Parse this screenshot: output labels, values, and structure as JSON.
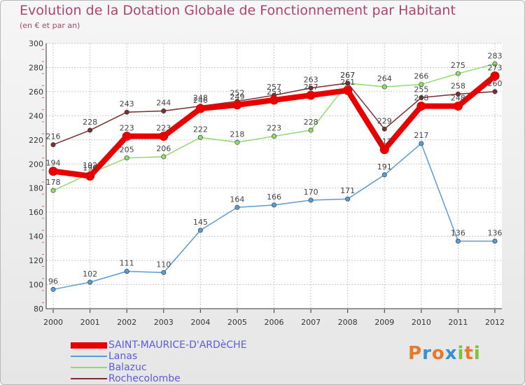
{
  "title": "Evolution de la Dotation Globale de Fonctionnement par Habitant",
  "subtitle": "(en € et par an)",
  "logo": "Proxiti",
  "logo_colors": [
    "#e8792a",
    "#3a8fd1",
    "#e8792a",
    "#3a8fd1",
    "#7cc242",
    "#e8792a",
    "#7cc242"
  ],
  "chart_data": {
    "type": "line",
    "title": "Evolution de la Dotation Globale de Fonctionnement par Habitant",
    "subtitle": "(en € et par an)",
    "xlabel": "",
    "ylabel": "",
    "x": [
      "2000",
      "2001",
      "2002",
      "2003",
      "2004",
      "2005",
      "2006",
      "2007",
      "2008",
      "2009",
      "2010",
      "2011",
      "2012"
    ],
    "ylim": [
      80,
      300
    ],
    "yticks": [
      "80",
      "100",
      "120",
      "140",
      "160",
      "180",
      "200",
      "220",
      "240",
      "260",
      "280",
      "300"
    ],
    "grid": true,
    "series": [
      {
        "name": "SAINT-MAURICE-D'ARDèCHE",
        "color": "#e80000",
        "values": [
          194,
          190,
          223,
          223,
          246,
          249,
          253,
          257,
          261,
          212,
          248,
          248,
          273
        ],
        "labels": [
          "194",
          "190",
          "223",
          "223",
          "246",
          "249",
          "253",
          "257",
          "261",
          "212",
          "248",
          "248",
          "273"
        ]
      },
      {
        "name": "Lanas",
        "color": "#5b9bd5",
        "values": [
          96,
          102,
          111,
          110,
          145,
          164,
          166,
          170,
          171,
          191,
          217,
          136,
          136
        ],
        "labels": [
          "96",
          "102",
          "111",
          "110",
          "145",
          "164",
          "166",
          "170",
          "171",
          "191",
          "217",
          "136",
          "136"
        ]
      },
      {
        "name": "Balazuc",
        "color": "#8fdc6b",
        "values": [
          178,
          192,
          205,
          206,
          222,
          218,
          223,
          228,
          267,
          264,
          266,
          275,
          283
        ],
        "labels": [
          "178",
          "192",
          "205",
          "206",
          "222",
          "218",
          "223",
          "228",
          "267",
          "264",
          "266",
          "275",
          "283"
        ]
      },
      {
        "name": "Rochecolombe",
        "color": "#7a2e2e",
        "values": [
          216,
          228,
          243,
          244,
          248,
          252,
          257,
          263,
          267,
          229,
          255,
          258,
          260
        ],
        "labels": [
          "216",
          "228",
          "243",
          "244",
          "248",
          "252",
          "257",
          "263",
          "267",
          "229",
          "255",
          "258",
          "260"
        ]
      }
    ]
  }
}
